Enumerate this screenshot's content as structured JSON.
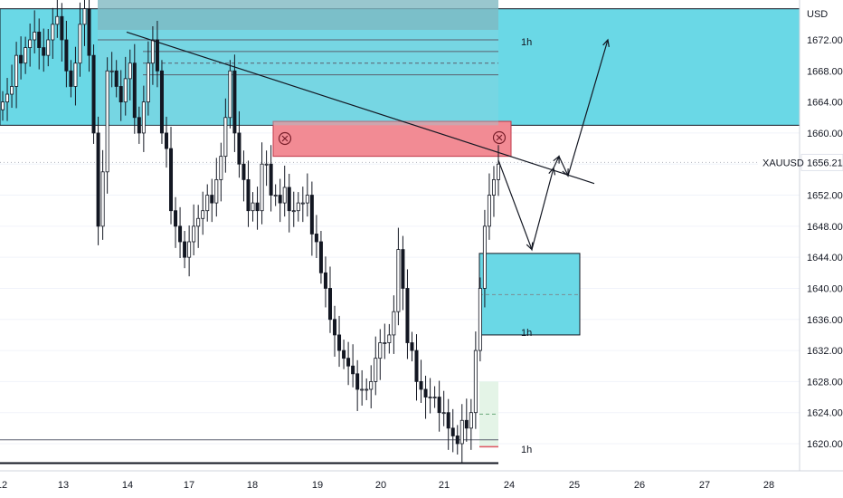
{
  "chart_data": {
    "type": "candlestick",
    "symbol": "XAUUSD",
    "currency": "USD",
    "last_price": "1656.21",
    "y_axis": {
      "range": [
        1617,
        1676
      ],
      "ticks": [
        "1672.00",
        "1668.00",
        "1664.00",
        "1660.00",
        "1656.00",
        "1652.00",
        "1648.00",
        "1644.00",
        "1640.00",
        "1636.00",
        "1632.00",
        "1628.00",
        "1624.00",
        "1620.00"
      ]
    },
    "x_axis": {
      "ticks": [
        "12",
        "13",
        "14",
        "17",
        "18",
        "19",
        "20",
        "21",
        "24",
        "25",
        "26",
        "27",
        "28"
      ]
    },
    "zones": [
      {
        "name": "supply-zone-upper",
        "price_low": 1661.0,
        "price_high": 1676.0,
        "color": "#6ad8e6"
      },
      {
        "name": "supply-zone-red",
        "price_low": 1657.0,
        "price_high": 1661.5,
        "color": "#f28b94"
      },
      {
        "name": "demand-zone-cyan",
        "price_low": 1634.0,
        "price_high": 1644.5,
        "color": "#6ad8e6"
      },
      {
        "name": "demand-zone-green",
        "price_low": 1619.5,
        "price_high": 1628.0,
        "color": "#e4f4e7"
      }
    ],
    "horizontal_levels": [
      1672.0,
      1670.5,
      1669.0,
      1667.5,
      1620.5,
      1617.5
    ],
    "trendline": {
      "from": {
        "x": "13.7",
        "price": 1673.0
      },
      "to": {
        "x": "25.3",
        "price": 1653.5
      }
    },
    "projection_path": [
      1656.5,
      1645.0,
      1655.5,
      1657.0,
      1654.5,
      1672.0
    ],
    "candle_closes": [
      1664,
      1665,
      1666,
      1670,
      1669,
      1671,
      1672,
      1673,
      1671,
      1670,
      1672,
      1674,
      1675,
      1672,
      1668,
      1666,
      1669,
      1674,
      1676,
      1670,
      1660,
      1648,
      1655,
      1668,
      1668,
      1666,
      1664,
      1667,
      1669,
      1662,
      1660,
      1664,
      1669,
      1672,
      1668,
      1660,
      1658,
      1650,
      1648,
      1646,
      1644,
      1646,
      1648,
      1649,
      1650,
      1652,
      1651,
      1654,
      1657,
      1662,
      1668,
      1660,
      1656,
      1654,
      1650,
      1651,
      1650,
      1656,
      1656,
      1652,
      1652,
      1651,
      1653,
      1650,
      1650,
      1651,
      1651,
      1652,
      1647,
      1646,
      1642,
      1640,
      1636,
      1634,
      1632,
      1631,
      1630,
      1629,
      1627,
      1627,
      1627,
      1628,
      1631,
      1633,
      1633,
      1634,
      1637,
      1645,
      1640,
      1633,
      1632,
      1628,
      1627,
      1626,
      1626,
      1626,
      1624,
      1624,
      1622,
      1621,
      1620,
      1623,
      1622,
      1624,
      1632,
      1640,
      1648,
      1652,
      1654,
      1656
    ],
    "labels_1h": [
      "1h",
      "1h",
      "1h"
    ]
  }
}
